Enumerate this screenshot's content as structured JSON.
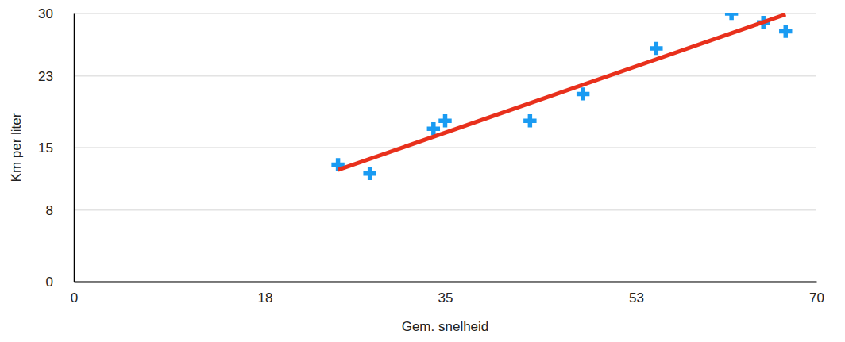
{
  "chart_data": {
    "type": "scatter",
    "x_label": "Gem. snelheid",
    "y_label": "Km per liter",
    "series": [
      {
        "type": "scatter",
        "color": "#1a9bf2",
        "marker": "plus",
        "x": [
          24.9,
          27.9,
          33.9,
          35.0,
          43.0,
          48.0,
          54.9,
          62.0,
          65.0,
          67.1
        ],
        "values": [
          13.1,
          12.1,
          17.1,
          18.0,
          18.0,
          21.0,
          26.1,
          30.0,
          29.0,
          28.0
        ]
      },
      {
        "type": "line",
        "color": "#e8301c",
        "line_style": "solid",
        "x": [
          24.9,
          67.1
        ],
        "values": [
          12.5,
          29.9
        ]
      }
    ],
    "xlim": [
      0,
      70
    ],
    "xticks": [
      0,
      18,
      35,
      53,
      70
    ],
    "ylim": [
      0,
      30
    ],
    "yticks": [
      0,
      8,
      15,
      23,
      30
    ],
    "grid": true
  }
}
